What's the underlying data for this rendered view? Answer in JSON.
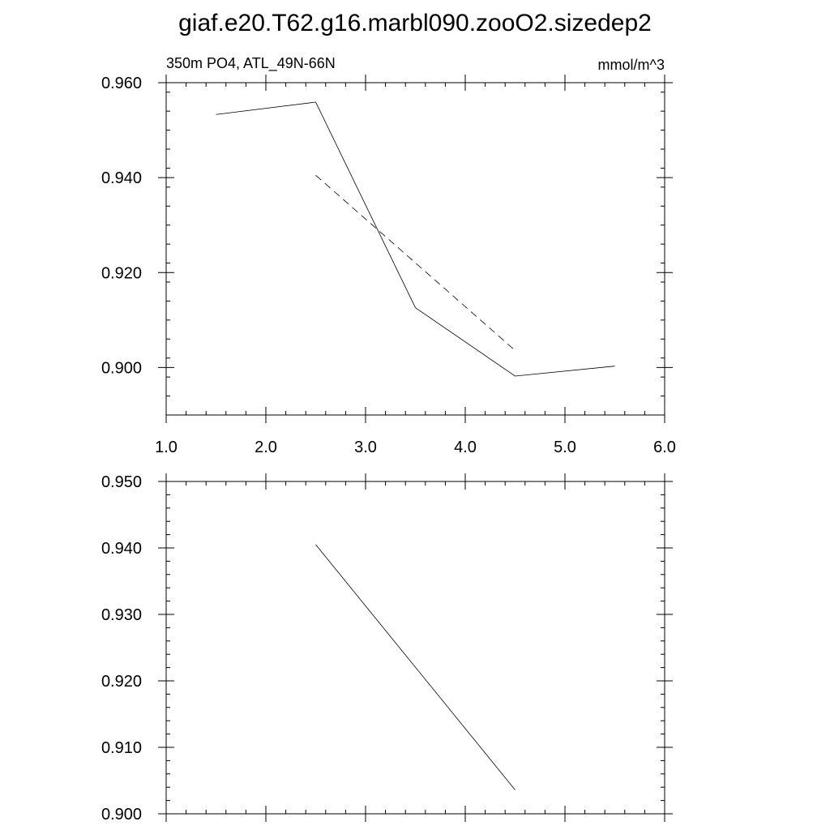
{
  "title": "giaf.e20.T62.g16.marbl090.zooO2.sizedep2",
  "chart_data": [
    {
      "type": "line",
      "subtitle_left": "350m PO4, ATL_49N-66N",
      "subtitle_right": "mmol/m^3",
      "xlim": [
        1.0,
        6.0
      ],
      "ylim": [
        0.89,
        0.96
      ],
      "x_tick_labels": [
        "1.0",
        "2.0",
        "3.0",
        "4.0",
        "5.0",
        "6.0"
      ],
      "y_tick_labels": [
        "0.900",
        "0.920",
        "0.940",
        "0.960"
      ],
      "grid": false,
      "series": [
        {
          "style": "solid",
          "x": [
            1.5,
            2.5,
            3.5,
            4.5,
            5.5
          ],
          "y": [
            0.9533,
            0.9559,
            0.9126,
            0.8982,
            0.9003
          ]
        },
        {
          "style": "dashed",
          "x": [
            2.5,
            4.5
          ],
          "y": [
            0.9405,
            0.9036
          ]
        }
      ]
    },
    {
      "type": "line",
      "xlim": [
        1.0,
        6.0
      ],
      "ylim": [
        0.9,
        0.95
      ],
      "y_tick_labels": [
        "0.900",
        "0.910",
        "0.920",
        "0.930",
        "0.940",
        "0.950"
      ],
      "grid": false,
      "series": [
        {
          "style": "solid",
          "x": [
            2.5,
            4.5
          ],
          "y": [
            0.9405,
            0.9036
          ]
        }
      ]
    }
  ]
}
